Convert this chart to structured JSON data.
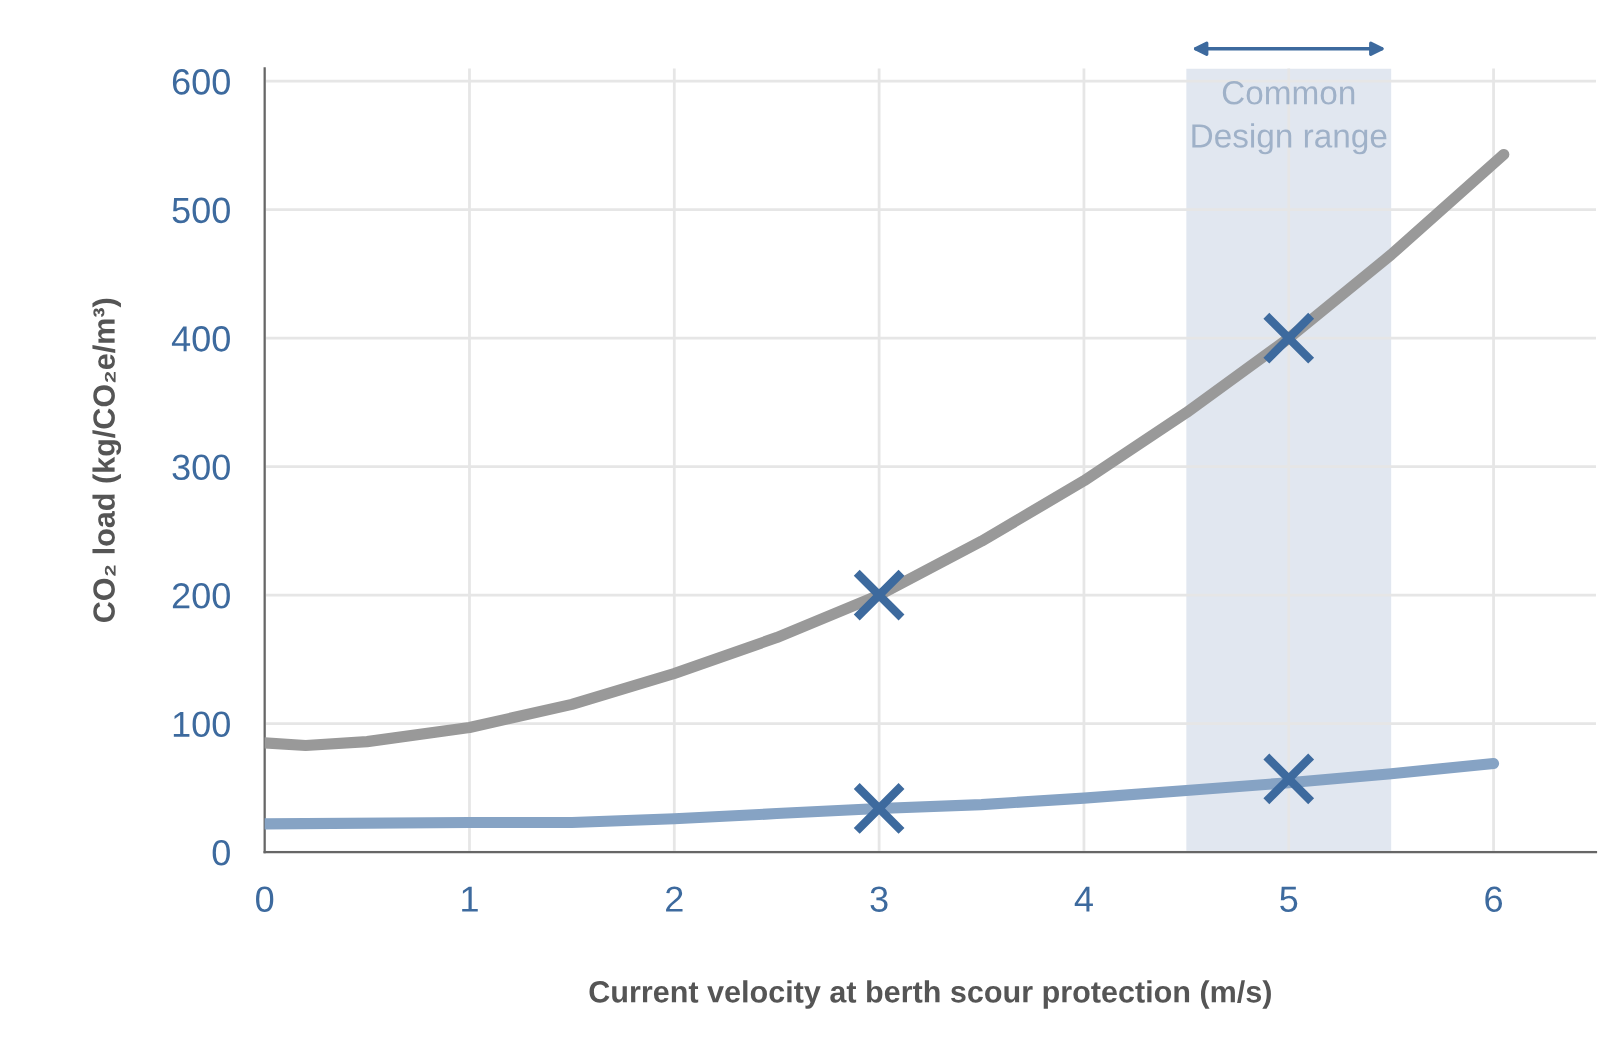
{
  "chart_data": {
    "type": "line",
    "xlabel": "Current velocity at berth scour protection (m/s)",
    "ylabel": "CO₂ load (kg/CO₂e/m³)",
    "xlim": [
      0,
      6.5
    ],
    "xticks": [
      0,
      1,
      2,
      3,
      4,
      5,
      6
    ],
    "ylim": [
      0,
      610
    ],
    "yticks": [
      0,
      100,
      200,
      300,
      400,
      500,
      600
    ],
    "grid": true,
    "bands": [
      {
        "axis": "x",
        "from": 4.5,
        "to": 5.5,
        "label": "Common\nDesign range",
        "color": "#e1e7f0"
      }
    ],
    "series": [
      {
        "color": "#999999",
        "x": [
          0,
          0.2,
          0.5,
          1,
          1.5,
          2,
          2.5,
          3,
          3.5,
          4,
          4.5,
          5,
          5.5,
          6.05
        ],
        "values": [
          85,
          83,
          86,
          97,
          115,
          139,
          167,
          200,
          242,
          289,
          342,
          400,
          465,
          543
        ]
      },
      {
        "color": "#86a3c4",
        "x": [
          0,
          1,
          1.5,
          2,
          2.5,
          3,
          3.5,
          4,
          4.5,
          5,
          5.5,
          6
        ],
        "values": [
          22,
          23,
          23,
          26,
          30,
          34,
          37,
          42,
          48,
          54,
          61,
          69
        ]
      },
      {
        "type": "scatter",
        "marker": "cross",
        "color": "#3d6a9e",
        "x": [
          3,
          5,
          3,
          5
        ],
        "values": [
          200,
          400,
          34,
          57
        ]
      }
    ]
  }
}
